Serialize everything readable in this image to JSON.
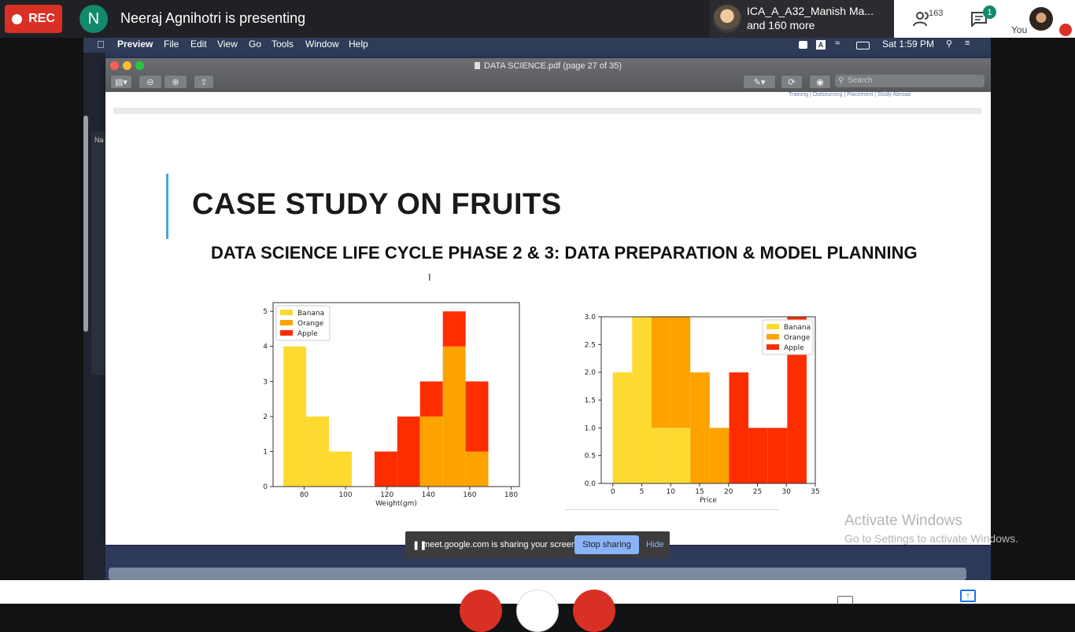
{
  "meet": {
    "rec_label": "REC",
    "presenter_initial": "N",
    "presenter_text": "Neeraj Agnihotri is presenting",
    "pinned_name": "ICA_A_A32_Manish Ma...",
    "pinned_more": "and 160 more",
    "people_count": "163",
    "chat_badge": "1",
    "you_label": "You",
    "share_notice": "meet.google.com is sharing your screen.",
    "stop_sharing": "Stop sharing",
    "hide": "Hide"
  },
  "mac_menu": {
    "app": "Preview",
    "items": [
      "File",
      "Edit",
      "View",
      "Go",
      "Tools",
      "Window",
      "Help"
    ],
    "clock": "Sat 1:59 PM",
    "input_source": "A"
  },
  "preview": {
    "window_title": "DATA SCIENCE.pdf (page 27 of 35)",
    "search_placeholder": "Search",
    "finder_column_label": "Na"
  },
  "slide": {
    "header_text": "Training  |  Outsourcing  |  Placement  |  Study Abroad",
    "title": "CASE STUDY ON FRUITS",
    "subtitle": "DATA SCIENCE LIFE CYCLE PHASE 2 & 3: DATA PREPARATION & MODEL PLANNING"
  },
  "watermark": {
    "line1": "Activate Windows",
    "line2": "Go to Settings to activate Windows."
  },
  "colors": {
    "banana": "#fdda2f",
    "orange": "#fda300",
    "apple": "#fe2d00",
    "rec": "#d93025",
    "meet_green": "#12896b",
    "accent_blue": "#4aa3e0"
  },
  "chart_data": [
    {
      "type": "bar",
      "stacked": true,
      "xlabel": "Weight(gm)",
      "ylabel": "",
      "xticks": [
        80,
        100,
        120,
        140,
        160,
        180
      ],
      "yticks": [
        0,
        1,
        2,
        3,
        4,
        5
      ],
      "xlim": [
        65,
        184
      ],
      "ylim": [
        0,
        5.25
      ],
      "legend": "top-left",
      "bin_edges": [
        70,
        81,
        92,
        103,
        114,
        125,
        136,
        147,
        158,
        169
      ],
      "series": [
        {
          "name": "Banana",
          "values": [
            4,
            2,
            1,
            0,
            0,
            0,
            0,
            0,
            0
          ]
        },
        {
          "name": "Orange",
          "values": [
            0,
            0,
            0,
            0,
            0,
            0,
            2,
            4,
            1
          ]
        },
        {
          "name": "Apple",
          "values": [
            0,
            0,
            0,
            0,
            1,
            2,
            1,
            1,
            2
          ]
        }
      ]
    },
    {
      "type": "bar",
      "stacked": true,
      "xlabel": "Price",
      "ylabel": "",
      "xticks": [
        0,
        5,
        10,
        15,
        20,
        25,
        30,
        35
      ],
      "yticks": [
        "0.0",
        "0.5",
        "1.0",
        "1.5",
        "2.0",
        "2.5",
        "3.0"
      ],
      "xlim": [
        -2,
        35
      ],
      "ylim": [
        0,
        3
      ],
      "legend": "top-right",
      "bin_edges": [
        0,
        3.35,
        6.7,
        10.05,
        13.4,
        16.75,
        20.1,
        23.45,
        26.8,
        30.15,
        33.5
      ],
      "series": [
        {
          "name": "Banana",
          "values": [
            2,
            3,
            1,
            1,
            0,
            0,
            0,
            0,
            0,
            0
          ]
        },
        {
          "name": "Orange",
          "values": [
            0,
            0,
            2,
            2,
            2,
            1,
            0,
            0,
            0,
            0
          ]
        },
        {
          "name": "Apple",
          "values": [
            0,
            0,
            0,
            0,
            0,
            0,
            2,
            1,
            1,
            3
          ]
        }
      ]
    }
  ]
}
